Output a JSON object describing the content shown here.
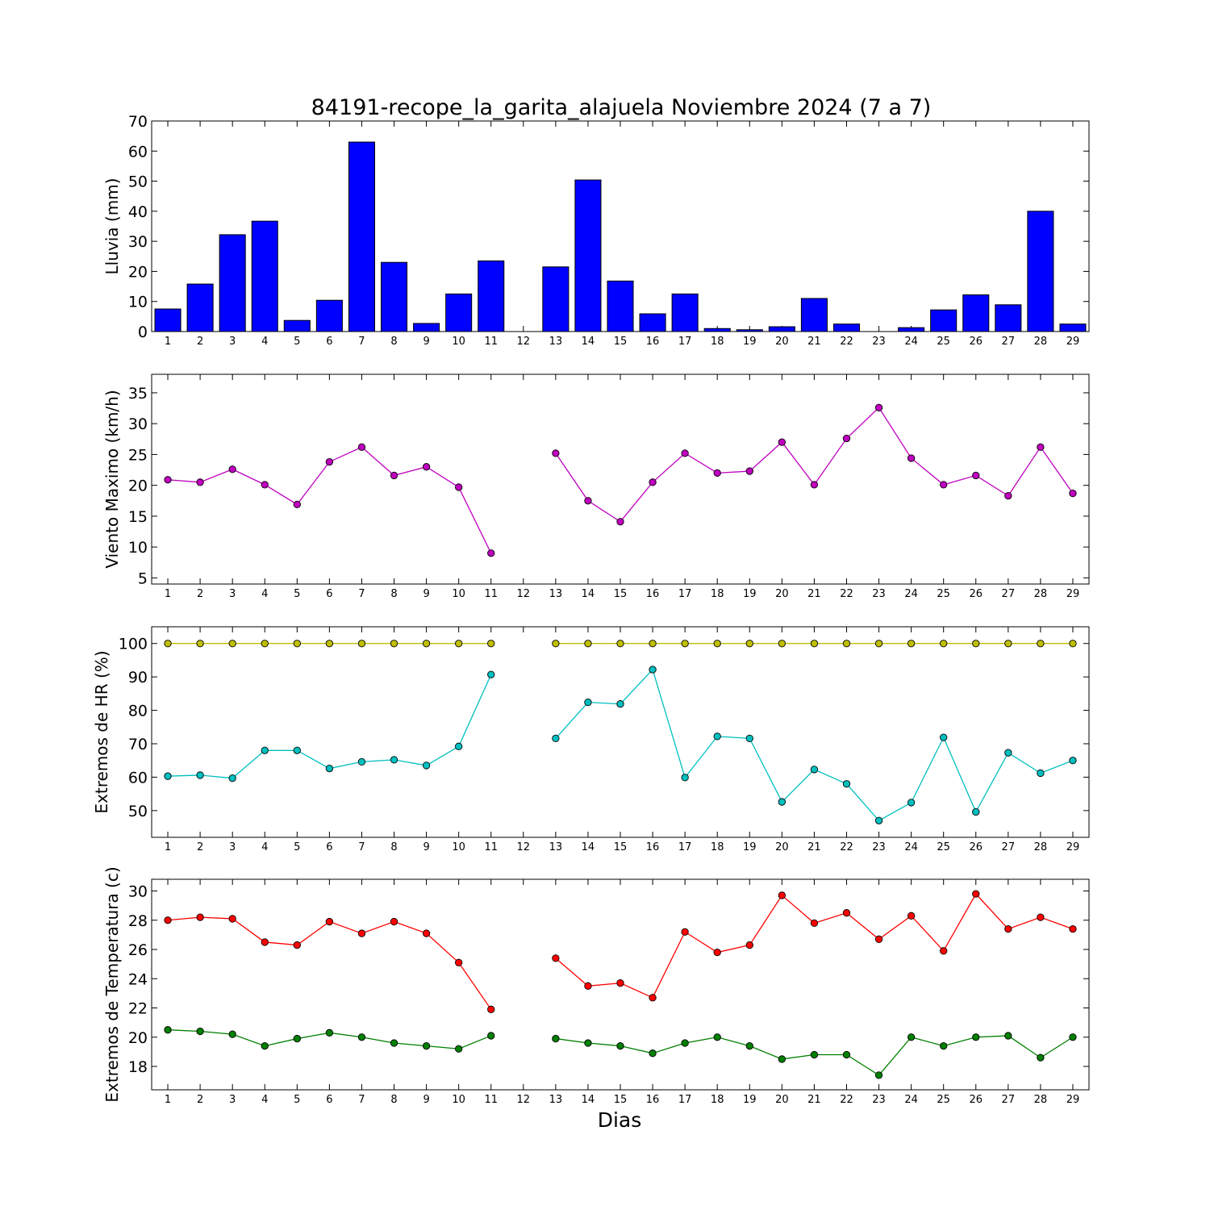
{
  "figure": {
    "title": "84191-recope_la_garita_alajuela Noviembre 2024  (7 a 7)",
    "xlabel": "Dias"
  },
  "chart_data": [
    {
      "type": "bar",
      "ylabel": "Lluvia (mm)",
      "categories": [
        "1",
        "2",
        "3",
        "4",
        "5",
        "6",
        "7",
        "8",
        "9",
        "10",
        "11",
        "12",
        "13",
        "14",
        "15",
        "16",
        "17",
        "18",
        "19",
        "20",
        "21",
        "22",
        "23",
        "24",
        "25",
        "26",
        "27",
        "28",
        "29"
      ],
      "values": [
        7.5,
        15.8,
        32.2,
        36.7,
        3.7,
        10.4,
        63.0,
        23.0,
        2.7,
        12.5,
        23.5,
        0,
        21.5,
        50.4,
        16.8,
        5.9,
        12.5,
        1.0,
        0.6,
        1.6,
        11.0,
        2.5,
        0,
        1.3,
        7.2,
        12.2,
        8.9,
        40.0,
        2.5
      ],
      "ylim": [
        0,
        70
      ],
      "yticks": [
        0,
        10,
        20,
        30,
        40,
        50,
        60,
        70
      ],
      "color": "#0000ff"
    },
    {
      "type": "line",
      "ylabel": "Viento Maximo (km/h)",
      "categories": [
        "1",
        "2",
        "3",
        "4",
        "5",
        "6",
        "7",
        "8",
        "9",
        "10",
        "11",
        "12",
        "13",
        "14",
        "15",
        "16",
        "17",
        "18",
        "19",
        "20",
        "21",
        "22",
        "23",
        "24",
        "25",
        "26",
        "27",
        "28",
        "29"
      ],
      "series": [
        {
          "color": "#bf00bf",
          "values": [
            20.9,
            20.5,
            22.6,
            20.1,
            16.9,
            23.8,
            26.2,
            21.6,
            23.0,
            19.7,
            9.0,
            null,
            25.2,
            17.5,
            14.1,
            20.5,
            25.2,
            22.0,
            22.3,
            27.0,
            20.1,
            27.6,
            32.6,
            24.4,
            20.1,
            21.6,
            18.3,
            26.2,
            18.7
          ]
        }
      ],
      "ylim": [
        4,
        38
      ],
      "yticks": [
        5,
        10,
        15,
        20,
        25,
        30,
        35
      ]
    },
    {
      "type": "line",
      "ylabel": "Extremos de HR (%)",
      "categories": [
        "1",
        "2",
        "3",
        "4",
        "5",
        "6",
        "7",
        "8",
        "9",
        "10",
        "11",
        "12",
        "13",
        "14",
        "15",
        "16",
        "17",
        "18",
        "19",
        "20",
        "21",
        "22",
        "23",
        "24",
        "25",
        "26",
        "27",
        "28",
        "29"
      ],
      "series": [
        {
          "color": "#bfbf00",
          "values": [
            100,
            100,
            100,
            100,
            100,
            100,
            100,
            100,
            100,
            100,
            100,
            null,
            100,
            100,
            100,
            100,
            100,
            100,
            100,
            100,
            100,
            100,
            100,
            100,
            100,
            100,
            100,
            100,
            100
          ]
        },
        {
          "color": "#00bfbf",
          "values": [
            60.3,
            60.6,
            59.7,
            68.0,
            68.0,
            62.6,
            64.6,
            65.2,
            63.5,
            69.2,
            90.7,
            null,
            71.6,
            82.4,
            81.9,
            92.2,
            59.9,
            72.2,
            71.6,
            52.6,
            62.3,
            58.0,
            47.0,
            52.4,
            71.9,
            49.6,
            67.3,
            61.2,
            65.0
          ]
        }
      ],
      "ylim": [
        42,
        105
      ],
      "yticks": [
        50,
        60,
        70,
        80,
        90,
        100
      ]
    },
    {
      "type": "line",
      "ylabel": "Extremos de Temperatura (c)",
      "categories": [
        "1",
        "2",
        "3",
        "4",
        "5",
        "6",
        "7",
        "8",
        "9",
        "10",
        "11",
        "12",
        "13",
        "14",
        "15",
        "16",
        "17",
        "18",
        "19",
        "20",
        "21",
        "22",
        "23",
        "24",
        "25",
        "26",
        "27",
        "28",
        "29"
      ],
      "series": [
        {
          "color": "#ff0000",
          "values": [
            28.0,
            28.2,
            28.1,
            26.5,
            26.3,
            27.9,
            27.1,
            27.9,
            27.1,
            25.1,
            21.9,
            null,
            25.4,
            23.5,
            23.7,
            22.7,
            27.2,
            25.8,
            26.3,
            29.7,
            27.8,
            28.5,
            26.7,
            28.3,
            25.9,
            29.8,
            27.4,
            28.2,
            27.4
          ]
        },
        {
          "color": "#007f00",
          "values": [
            20.5,
            20.4,
            20.2,
            19.4,
            19.9,
            20.3,
            20.0,
            19.6,
            19.4,
            19.2,
            20.1,
            null,
            19.9,
            19.6,
            19.4,
            18.9,
            19.6,
            20.0,
            19.4,
            18.5,
            18.8,
            18.8,
            17.4,
            20.0,
            19.4,
            20.0,
            20.1,
            18.6,
            20.0
          ]
        }
      ],
      "ylim": [
        16.4,
        30.8
      ],
      "yticks": [
        18,
        20,
        22,
        24,
        26,
        28,
        30
      ]
    }
  ]
}
